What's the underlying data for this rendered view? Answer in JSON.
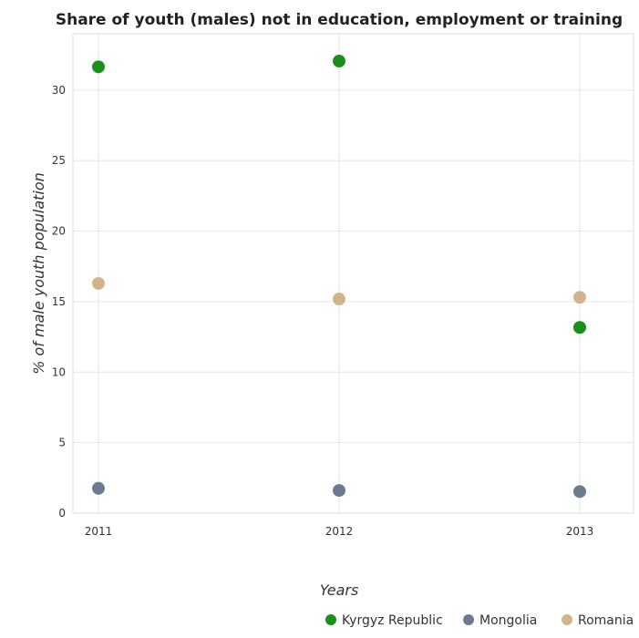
{
  "chart_data": {
    "type": "scatter",
    "title": "Share of youth (males) not in education, employment or training",
    "xlabel": "Years",
    "ylabel": "% of male youth population",
    "x": [
      "2011",
      "2012",
      "2013"
    ],
    "ylim": [
      0,
      34
    ],
    "yticks": [
      0,
      5,
      10,
      15,
      20,
      25,
      30
    ],
    "grid": true,
    "legend_position": "bottom-right",
    "series": [
      {
        "name": "Kyrgyz Republic",
        "color": "#1a8f1a",
        "values": [
          31.65,
          32.06,
          13.17
        ]
      },
      {
        "name": "Mongolia",
        "color": "#6b7c8f",
        "values": [
          1.76,
          1.61,
          1.53
        ]
      },
      {
        "name": "Romania",
        "color": "#d2b48c",
        "values": [
          16.29,
          15.18,
          15.3
        ]
      }
    ]
  }
}
